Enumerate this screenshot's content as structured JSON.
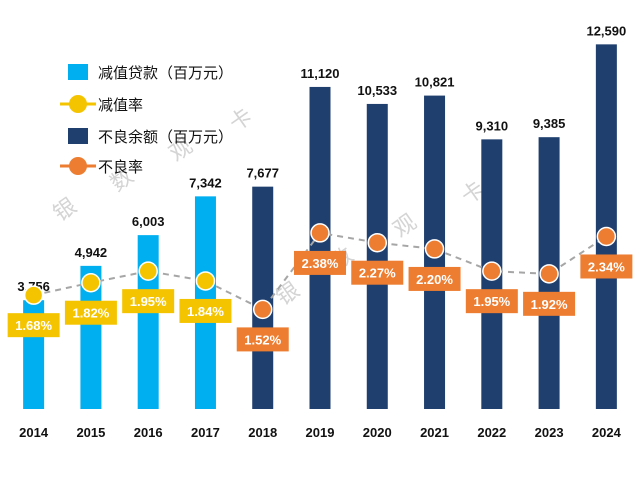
{
  "chart_data": {
    "type": "bar",
    "categories": [
      "2014",
      "2015",
      "2016",
      "2017",
      "2018",
      "2019",
      "2020",
      "2021",
      "2022",
      "2023",
      "2024"
    ],
    "series": [
      {
        "name": "减值贷款（百万元）",
        "kind": "bar",
        "color": "#00aff0",
        "values": [
          3756,
          4942,
          6003,
          7342,
          null,
          null,
          null,
          null,
          null,
          null,
          null
        ],
        "labels": [
          "3,756",
          "4,942",
          "6,003",
          "7,342",
          "",
          "",
          "",
          "",
          "",
          "",
          ""
        ]
      },
      {
        "name": "减值率",
        "kind": "line",
        "color": "#f5c400",
        "values": [
          1.68,
          1.82,
          1.95,
          1.84,
          null,
          null,
          null,
          null,
          null,
          null,
          null
        ],
        "labels": [
          "1.68%",
          "1.82%",
          "1.95%",
          "1.84%",
          "",
          "",
          "",
          "",
          "",
          "",
          ""
        ]
      },
      {
        "name": "不良余额（百万元）",
        "kind": "bar",
        "color": "#1f3f6e",
        "values": [
          null,
          null,
          null,
          null,
          7677,
          11120,
          10533,
          10821,
          9310,
          9385,
          12590
        ],
        "labels": [
          "",
          "",
          "",
          "",
          "7,677",
          "11,120",
          "10,533",
          "10,821",
          "9,310",
          "9,385",
          "12,590"
        ]
      },
      {
        "name": "不良率",
        "kind": "line",
        "color": "#ed7d31",
        "values": [
          null,
          null,
          null,
          null,
          1.52,
          2.38,
          2.27,
          2.2,
          1.95,
          1.92,
          2.34
        ],
        "labels": [
          "",
          "",
          "",
          "",
          "1.52%",
          "2.38%",
          "2.27%",
          "2.20%",
          "1.95%",
          "1.92%",
          "2.34%"
        ]
      }
    ],
    "bar_ylim": [
      0,
      13500
    ],
    "rate_ylim": [
      0.4,
      3.2
    ],
    "grid": false,
    "legend_position": "top-left",
    "line_style": "dashed-gray"
  },
  "watermark": [
    "银",
    "数",
    "观",
    "卡"
  ]
}
